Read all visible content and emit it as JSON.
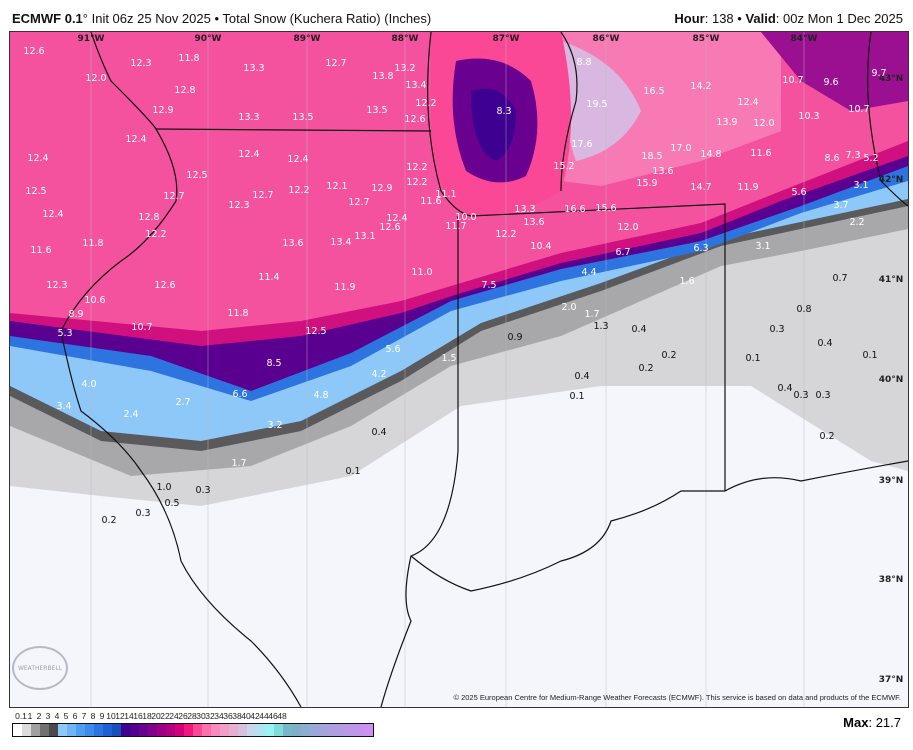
{
  "header": {
    "model": "ECMWF 0.1",
    "model_suffix": "° Init 06z 25 Nov 2025 • Total Snow (Kuchera Ratio) (Inches)",
    "hour_label": "Hour",
    "hour_value": ": 138 • ",
    "valid_label": "Valid",
    "valid_value": ": 00z Mon 1 Dec 2025"
  },
  "map": {
    "longitude_labels": [
      "91°W",
      "90°W",
      "89°W",
      "88°W",
      "87°W",
      "86°W",
      "85°W",
      "84°W"
    ],
    "latitude_labels": [
      "43°N",
      "42°N",
      "41°N",
      "40°N",
      "39°N",
      "38°N",
      "37°N"
    ],
    "snow_values": [
      "12.6",
      "12.3",
      "11.8",
      "13.3",
      "12.7",
      "13.8",
      "13.2",
      "12.0",
      "12.8",
      "13.4",
      "12.2",
      "8.3",
      "8.8",
      "16.5",
      "14.2",
      "10.7",
      "9.6",
      "9.7",
      "19.5",
      "12.4",
      "12.9",
      "13.3",
      "13.5",
      "13.5",
      "12.6",
      "13.9",
      "12.0",
      "10.3",
      "10.7",
      "12.4",
      "17.6",
      "12.4",
      "12.4",
      "12.4",
      "18.5",
      "17.0",
      "14.8",
      "11.6",
      "8.6",
      "7.3",
      "5.2",
      "12.5",
      "15.2",
      "12.2",
      "12.5",
      "12.7",
      "12.7",
      "12.2",
      "12.1",
      "12.9",
      "12.2",
      "11.1",
      "15.9",
      "14.7",
      "11.9",
      "3.1",
      "13.6",
      "12.4",
      "12.3",
      "12.7",
      "11.6",
      "5.6",
      "3.7",
      "12.8",
      "12.4",
      "12.6",
      "13.1",
      "13.3",
      "16.6",
      "15.6",
      "10.0",
      "11.7",
      "13.6",
      "12.0",
      "2.2",
      "12.2",
      "12.2",
      "13.6",
      "13.4",
      "10.4",
      "6.7",
      "6.3",
      "3.1",
      "11.6",
      "11.8",
      "11.0",
      "4.4",
      "11.4",
      "12.3",
      "12.6",
      "11.9",
      "7.5",
      "1.6",
      "0.7",
      "10.6",
      "8.9",
      "11.8",
      "2.0",
      "1.7",
      "0.8",
      "10.7",
      "12.5",
      "1.3",
      "0.4",
      "0.3",
      "5.3",
      "0.9",
      "0.4",
      "5.6",
      "0.2",
      "0.1",
      "0.1",
      "8.5",
      "1.5",
      "0.2",
      "4.2",
      "0.4",
      "4.0",
      "6.6",
      "4.8",
      "0.4",
      "0.3",
      "0.3",
      "0.1",
      "3.4",
      "2.4",
      "2.7",
      "3.2",
      "0.4",
      "0.2",
      "1.7",
      "0.1",
      "1.0",
      "0.3",
      "0.5",
      "0.3",
      "0.2"
    ],
    "copyright": "© 2025 European Centre for Medium-Range Weather Forecasts (ECMWF). This service is based on data and products of the ECMWF.",
    "logo_text": "WEATHERBELL"
  },
  "legend": {
    "unit": "Inches",
    "ticks": [
      "0.1",
      "1",
      "2",
      "3",
      "4",
      "5",
      "6",
      "7",
      "8",
      "9",
      "10",
      "12",
      "14",
      "16",
      "18",
      "20",
      "22",
      "24",
      "26",
      "28",
      "30",
      "32",
      "34",
      "36",
      "38",
      "40",
      "42",
      "44",
      "46",
      "48"
    ],
    "colors": [
      "#ffffff",
      "#dcdcdc",
      "#a0a0a0",
      "#707070",
      "#4a4a4a",
      "#8ec8f8",
      "#70b4f6",
      "#4f9ef2",
      "#3f8ce8",
      "#2d74e0",
      "#1f60d2",
      "#1550bc",
      "#3d0090",
      "#520090",
      "#6a0090",
      "#82008c",
      "#990084",
      "#b00080",
      "#d4007a",
      "#f0187e",
      "#fa4896",
      "#fc70ae",
      "#f88abc",
      "#f0a0c8",
      "#e8b0d0",
      "#d8c0dc",
      "#c8d8ec",
      "#b0e4f0",
      "#98f4f4",
      "#80dcd8",
      "#76b8c8",
      "#80b0c8",
      "#8cacd0",
      "#98a8d8",
      "#a4a4dc",
      "#aca0e0",
      "#b49ce4",
      "#bc98e8",
      "#c494ec",
      "#cc90f0"
    ],
    "max_label": "Max",
    "max_value": ": 21.7"
  }
}
